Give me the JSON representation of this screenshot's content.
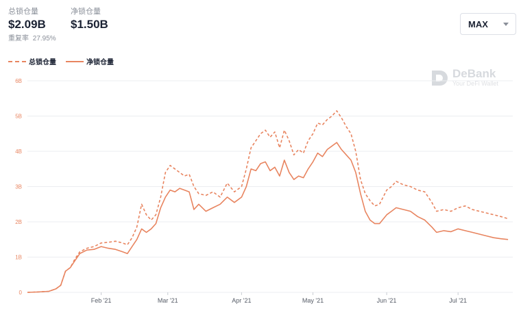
{
  "stats": {
    "total_label": "总锁仓量",
    "total_value": "$2.09B",
    "net_label": "净锁仓量",
    "net_value": "$1.50B",
    "ratio_label": "重复率",
    "ratio_value": "27.95%"
  },
  "range_select": {
    "value": "MAX"
  },
  "watermark": {
    "name": "DeBank",
    "tagline": "Your DeFi Wallet"
  },
  "colors": {
    "series": "#e8845f",
    "tick_text": "#e8845f",
    "grid": "#ebedf0",
    "axis_text": "#555b66"
  },
  "chart_data": {
    "type": "line",
    "ylim": [
      0,
      6
    ],
    "y_ticks": [
      "0",
      "1B",
      "2B",
      "3B",
      "4B",
      "5B",
      "6B"
    ],
    "x_ticks": [
      "Feb '21",
      "Mar '21",
      "Apr '21",
      "May '21",
      "Jun '21",
      "Jul '21"
    ],
    "x_domain": [
      "2021-01-01",
      "2021-07-24"
    ],
    "grid": true,
    "legend_position": "top-left",
    "series": [
      {
        "name": "总锁仓量",
        "style": "dashed",
        "points": [
          [
            "2021-01-01",
            0
          ],
          [
            "2021-01-05",
            0.01
          ],
          [
            "2021-01-10",
            0.03
          ],
          [
            "2021-01-13",
            0.1
          ],
          [
            "2021-01-15",
            0.2
          ],
          [
            "2021-01-17",
            0.6
          ],
          [
            "2021-01-19",
            0.7
          ],
          [
            "2021-01-21",
            0.95
          ],
          [
            "2021-01-23",
            1.15
          ],
          [
            "2021-01-26",
            1.25
          ],
          [
            "2021-01-29",
            1.3
          ],
          [
            "2021-02-01",
            1.4
          ],
          [
            "2021-02-04",
            1.42
          ],
          [
            "2021-02-07",
            1.45
          ],
          [
            "2021-02-10",
            1.4
          ],
          [
            "2021-02-12",
            1.35
          ],
          [
            "2021-02-14",
            1.55
          ],
          [
            "2021-02-16",
            1.85
          ],
          [
            "2021-02-18",
            2.5
          ],
          [
            "2021-02-20",
            2.2
          ],
          [
            "2021-02-22",
            2.05
          ],
          [
            "2021-02-24",
            2.2
          ],
          [
            "2021-02-26",
            2.7
          ],
          [
            "2021-02-28",
            3.4
          ],
          [
            "2021-03-02",
            3.6
          ],
          [
            "2021-03-04",
            3.5
          ],
          [
            "2021-03-06",
            3.4
          ],
          [
            "2021-03-08",
            3.3
          ],
          [
            "2021-03-10",
            3.35
          ],
          [
            "2021-03-12",
            3.0
          ],
          [
            "2021-03-14",
            2.8
          ],
          [
            "2021-03-17",
            2.75
          ],
          [
            "2021-03-20",
            2.85
          ],
          [
            "2021-03-23",
            2.7
          ],
          [
            "2021-03-26",
            3.1
          ],
          [
            "2021-03-29",
            2.85
          ],
          [
            "2021-04-01",
            3.0
          ],
          [
            "2021-04-03",
            3.5
          ],
          [
            "2021-04-05",
            4.1
          ],
          [
            "2021-04-07",
            4.3
          ],
          [
            "2021-04-09",
            4.5
          ],
          [
            "2021-04-11",
            4.6
          ],
          [
            "2021-04-13",
            4.4
          ],
          [
            "2021-04-15",
            4.55
          ],
          [
            "2021-04-17",
            4.1
          ],
          [
            "2021-04-19",
            4.6
          ],
          [
            "2021-04-21",
            4.3
          ],
          [
            "2021-04-23",
            3.9
          ],
          [
            "2021-04-25",
            4.05
          ],
          [
            "2021-04-27",
            3.95
          ],
          [
            "2021-04-29",
            4.3
          ],
          [
            "2021-05-01",
            4.5
          ],
          [
            "2021-05-03",
            4.8
          ],
          [
            "2021-05-05",
            4.75
          ],
          [
            "2021-05-07",
            4.9
          ],
          [
            "2021-05-09",
            5.0
          ],
          [
            "2021-05-11",
            5.15
          ],
          [
            "2021-05-13",
            4.95
          ],
          [
            "2021-05-15",
            4.7
          ],
          [
            "2021-05-17",
            4.5
          ],
          [
            "2021-05-19",
            4.0
          ],
          [
            "2021-05-21",
            3.2
          ],
          [
            "2021-05-23",
            2.8
          ],
          [
            "2021-05-25",
            2.6
          ],
          [
            "2021-05-27",
            2.45
          ],
          [
            "2021-05-29",
            2.5
          ],
          [
            "2021-06-01",
            2.9
          ],
          [
            "2021-06-03",
            3.0
          ],
          [
            "2021-06-05",
            3.15
          ],
          [
            "2021-06-08",
            3.05
          ],
          [
            "2021-06-11",
            3.0
          ],
          [
            "2021-06-14",
            2.9
          ],
          [
            "2021-06-17",
            2.85
          ],
          [
            "2021-06-20",
            2.55
          ],
          [
            "2021-06-22",
            2.3
          ],
          [
            "2021-06-25",
            2.35
          ],
          [
            "2021-06-28",
            2.3
          ],
          [
            "2021-07-01",
            2.4
          ],
          [
            "2021-07-04",
            2.45
          ],
          [
            "2021-07-07",
            2.35
          ],
          [
            "2021-07-10",
            2.3
          ],
          [
            "2021-07-13",
            2.25
          ],
          [
            "2021-07-16",
            2.2
          ],
          [
            "2021-07-19",
            2.15
          ],
          [
            "2021-07-22",
            2.09
          ]
        ]
      },
      {
        "name": "净锁仓量",
        "style": "solid",
        "points": [
          [
            "2021-01-01",
            0
          ],
          [
            "2021-01-05",
            0.01
          ],
          [
            "2021-01-10",
            0.03
          ],
          [
            "2021-01-13",
            0.1
          ],
          [
            "2021-01-15",
            0.2
          ],
          [
            "2021-01-17",
            0.6
          ],
          [
            "2021-01-19",
            0.7
          ],
          [
            "2021-01-21",
            0.9
          ],
          [
            "2021-01-23",
            1.1
          ],
          [
            "2021-01-26",
            1.2
          ],
          [
            "2021-01-29",
            1.22
          ],
          [
            "2021-02-01",
            1.3
          ],
          [
            "2021-02-04",
            1.25
          ],
          [
            "2021-02-07",
            1.22
          ],
          [
            "2021-02-10",
            1.15
          ],
          [
            "2021-02-12",
            1.1
          ],
          [
            "2021-02-14",
            1.3
          ],
          [
            "2021-02-16",
            1.5
          ],
          [
            "2021-02-18",
            1.8
          ],
          [
            "2021-02-20",
            1.7
          ],
          [
            "2021-02-22",
            1.8
          ],
          [
            "2021-02-24",
            1.95
          ],
          [
            "2021-02-26",
            2.4
          ],
          [
            "2021-02-28",
            2.7
          ],
          [
            "2021-03-02",
            2.9
          ],
          [
            "2021-03-04",
            2.85
          ],
          [
            "2021-03-06",
            2.95
          ],
          [
            "2021-03-08",
            2.9
          ],
          [
            "2021-03-10",
            2.85
          ],
          [
            "2021-03-12",
            2.35
          ],
          [
            "2021-03-14",
            2.5
          ],
          [
            "2021-03-17",
            2.3
          ],
          [
            "2021-03-20",
            2.4
          ],
          [
            "2021-03-23",
            2.5
          ],
          [
            "2021-03-26",
            2.7
          ],
          [
            "2021-03-29",
            2.55
          ],
          [
            "2021-04-01",
            2.7
          ],
          [
            "2021-04-03",
            3.0
          ],
          [
            "2021-04-05",
            3.5
          ],
          [
            "2021-04-07",
            3.45
          ],
          [
            "2021-04-09",
            3.65
          ],
          [
            "2021-04-11",
            3.7
          ],
          [
            "2021-04-13",
            3.45
          ],
          [
            "2021-04-15",
            3.55
          ],
          [
            "2021-04-17",
            3.3
          ],
          [
            "2021-04-19",
            3.75
          ],
          [
            "2021-04-21",
            3.4
          ],
          [
            "2021-04-23",
            3.2
          ],
          [
            "2021-04-25",
            3.3
          ],
          [
            "2021-04-27",
            3.25
          ],
          [
            "2021-04-29",
            3.5
          ],
          [
            "2021-05-01",
            3.7
          ],
          [
            "2021-05-03",
            3.95
          ],
          [
            "2021-05-05",
            3.85
          ],
          [
            "2021-05-07",
            4.05
          ],
          [
            "2021-05-09",
            4.15
          ],
          [
            "2021-05-11",
            4.25
          ],
          [
            "2021-05-13",
            4.05
          ],
          [
            "2021-05-15",
            3.9
          ],
          [
            "2021-05-17",
            3.75
          ],
          [
            "2021-05-19",
            3.4
          ],
          [
            "2021-05-21",
            2.8
          ],
          [
            "2021-05-23",
            2.3
          ],
          [
            "2021-05-25",
            2.05
          ],
          [
            "2021-05-27",
            1.95
          ],
          [
            "2021-05-29",
            1.95
          ],
          [
            "2021-06-01",
            2.2
          ],
          [
            "2021-06-03",
            2.3
          ],
          [
            "2021-06-05",
            2.4
          ],
          [
            "2021-06-08",
            2.35
          ],
          [
            "2021-06-11",
            2.3
          ],
          [
            "2021-06-14",
            2.15
          ],
          [
            "2021-06-17",
            2.05
          ],
          [
            "2021-06-20",
            1.85
          ],
          [
            "2021-06-22",
            1.7
          ],
          [
            "2021-06-25",
            1.75
          ],
          [
            "2021-06-28",
            1.72
          ],
          [
            "2021-07-01",
            1.8
          ],
          [
            "2021-07-04",
            1.75
          ],
          [
            "2021-07-07",
            1.7
          ],
          [
            "2021-07-10",
            1.65
          ],
          [
            "2021-07-13",
            1.6
          ],
          [
            "2021-07-16",
            1.55
          ],
          [
            "2021-07-19",
            1.52
          ],
          [
            "2021-07-22",
            1.5
          ]
        ]
      }
    ]
  }
}
